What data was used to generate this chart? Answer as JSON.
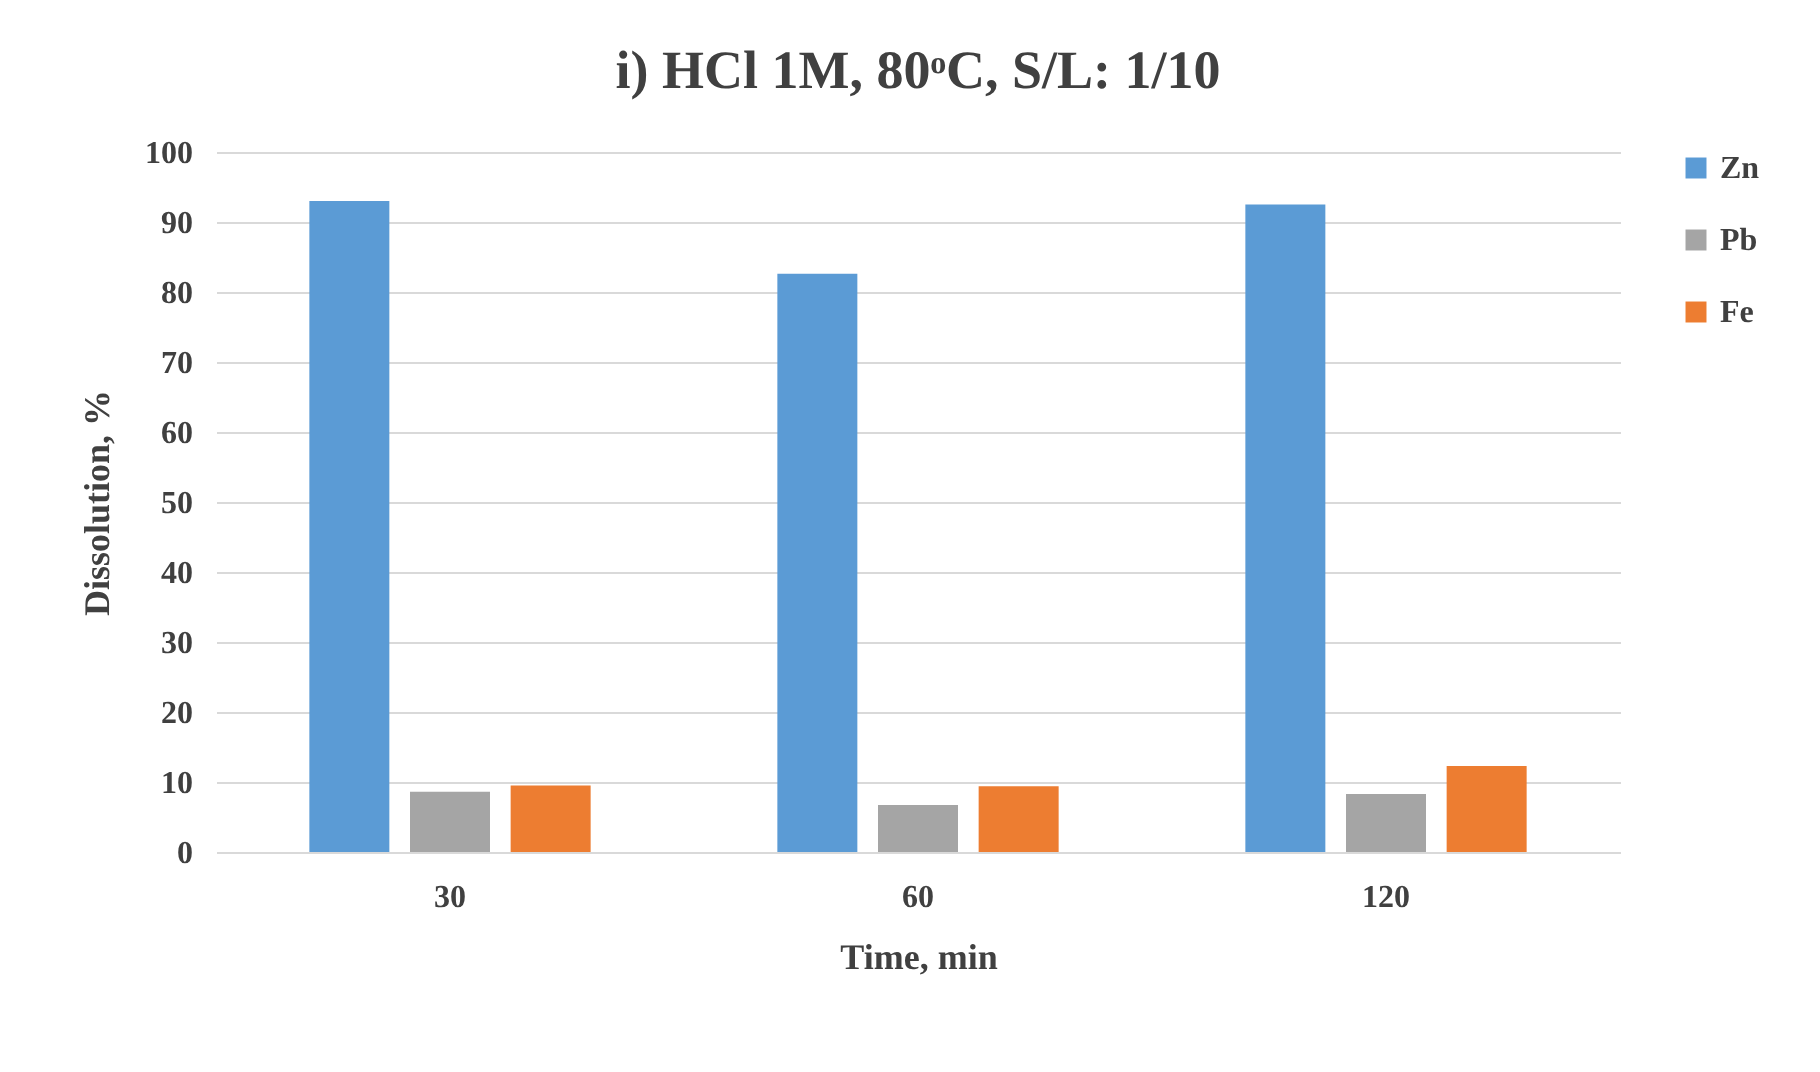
{
  "chart_data": {
    "type": "bar",
    "title": "i) HCl 1M, 80ᵒC, S/L: 1/10",
    "xlabel": "Time, min",
    "ylabel": "Dissolution, %",
    "categories": [
      "30",
      "60",
      "120"
    ],
    "series": [
      {
        "name": "Zn",
        "color": "#5b9bd5",
        "values": [
          93,
          82.6,
          92.5
        ]
      },
      {
        "name": "Pb",
        "color": "#a5a5a5",
        "values": [
          8.6,
          6.7,
          8.3
        ]
      },
      {
        "name": "Fe",
        "color": "#ed7d31",
        "values": [
          9.5,
          9.4,
          12.3
        ]
      }
    ],
    "ylim": [
      0,
      100
    ],
    "yticks": [
      0,
      10,
      20,
      30,
      40,
      50,
      60,
      70,
      80,
      90,
      100
    ],
    "grid": "y",
    "legend": "right"
  }
}
